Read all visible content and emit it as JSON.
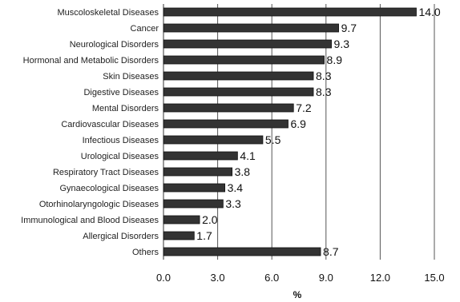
{
  "chart_data": {
    "type": "bar",
    "orientation": "horizontal",
    "categories": [
      "Muscoloskeletal Diseases",
      "Cancer",
      "Neurological Disorders",
      "Hormonal and Metabolic Disorders",
      "Skin Diseases",
      "Digestive Diseases",
      "Mental Disorders",
      "Cardiovascular Diseases",
      "Infectious Diseases",
      "Urological Diseases",
      "Respiratory Tract Diseases",
      "Gynaecological Diseases",
      "Otorhinolaryngologic Diseases",
      "Immunological and Blood Diseases",
      "Allergical Disorders",
      "Others"
    ],
    "values": [
      14.0,
      9.7,
      9.3,
      8.9,
      8.3,
      8.3,
      7.2,
      6.9,
      5.5,
      4.1,
      3.8,
      3.4,
      3.3,
      2.0,
      1.7,
      8.7
    ],
    "value_labels": [
      "14.0",
      "9.7",
      "9.3",
      "8.9",
      "8.3",
      "8.3",
      "7.2",
      "6.9",
      "5.5",
      "4.1",
      "3.8",
      "3.4",
      "3.3",
      "2.0",
      "1.7",
      "8.7"
    ],
    "xlabel": "%",
    "xlim": [
      0,
      15
    ],
    "xticks": [
      "0.0",
      "3.0",
      "6.0",
      "9.0",
      "12.0",
      "15.0"
    ],
    "grid": "vertical",
    "bar_color": "#333333",
    "title": "",
    "ylabel": ""
  }
}
